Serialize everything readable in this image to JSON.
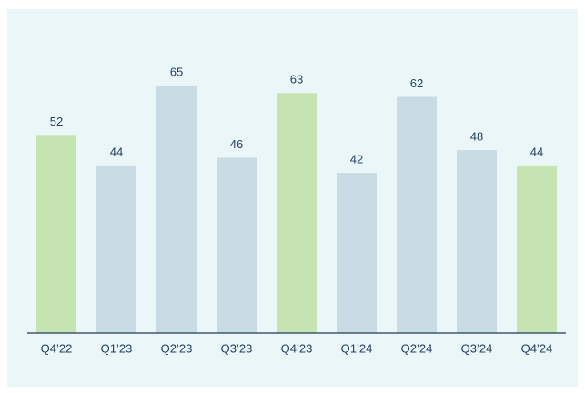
{
  "chart_data": {
    "type": "bar",
    "categories": [
      "Q4’22",
      "Q1’23",
      "Q2’23",
      "Q3’23",
      "Q4’23",
      "Q1’24",
      "Q2’24",
      "Q3’24",
      "Q4’24"
    ],
    "values": [
      52,
      44,
      65,
      46,
      63,
      42,
      62,
      48,
      44
    ],
    "colors": [
      "#c6e4b1",
      "#c9dbe5",
      "#c9dbe5",
      "#c9dbe5",
      "#c6e4b1",
      "#c9dbe5",
      "#c9dbe5",
      "#c9dbe5",
      "#c6e4b1"
    ],
    "ylim": [
      0,
      70
    ]
  }
}
